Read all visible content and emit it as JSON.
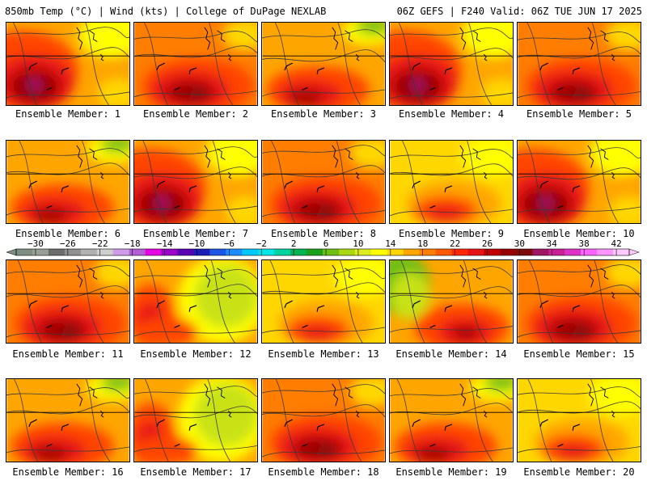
{
  "header": {
    "left": "850mb Temp (°C) | Wind (kts) | College of DuPage NEXLAB",
    "right": "06Z GEFS | F240 Valid: 06Z TUE JUN 17 2025"
  },
  "legend": {
    "tick_labels": [
      "-30",
      "-26",
      "-22",
      "-18",
      "-14",
      "-10",
      "-6",
      "-2",
      "2",
      "6",
      "10",
      "14",
      "18",
      "22",
      "26",
      "30",
      "34",
      "38",
      "42"
    ],
    "colors": [
      "#7e8e80",
      "#94a194",
      "#6c6c6c",
      "#909090",
      "#b0b0b0",
      "#cfcfcf",
      "#ce9ce8",
      "#b35fd6",
      "#e600e6",
      "#9b00c8",
      "#5a00b4",
      "#1c1cb8",
      "#1d55e6",
      "#1e8cff",
      "#00c8ff",
      "#00e6e6",
      "#00d2a0",
      "#00b450",
      "#1aa01a",
      "#6ebe14",
      "#a8d814",
      "#dcec1e",
      "#ffff00",
      "#ffd700",
      "#ffa500",
      "#ff7d00",
      "#ff5a00",
      "#ff2800",
      "#e61414",
      "#c00000",
      "#960000",
      "#7e0a0a",
      "#a01464",
      "#c81e96",
      "#dc32c8",
      "#ff64ff",
      "#ff96ff",
      "#ffc8ff"
    ],
    "temp_colors": {
      "green": "#6ebe14",
      "yellow_green": "#c8e214",
      "yellow": "#ffff00",
      "gold": "#ffd700",
      "orange": "#ffa500",
      "dark_orange": "#ff7d00",
      "red_orange": "#ff4500",
      "red": "#e61414",
      "dark_red": "#a00000",
      "maroon": "#7e0a0a",
      "magenta": "#c81e96"
    }
  },
  "members": [
    {
      "label": "Ensemble Member: 1",
      "style": "hot_west"
    },
    {
      "label": "Ensemble Member: 2",
      "style": "hot_south"
    },
    {
      "label": "Ensemble Member: 3",
      "style": "green_ne"
    },
    {
      "label": "Ensemble Member: 4",
      "style": "hot_west"
    },
    {
      "label": "Ensemble Member: 5",
      "style": "hot_south"
    },
    {
      "label": "Ensemble Member: 6",
      "style": "green_ne"
    },
    {
      "label": "Ensemble Member: 7",
      "style": "hot_west"
    },
    {
      "label": "Ensemble Member: 8",
      "style": "hot_south"
    },
    {
      "label": "Ensemble Member: 9",
      "style": "mild"
    },
    {
      "label": "Ensemble Member: 10",
      "style": "hot_west"
    },
    {
      "label": "Ensemble Member: 11",
      "style": "hot_south"
    },
    {
      "label": "Ensemble Member: 12",
      "style": "green_center"
    },
    {
      "label": "Ensemble Member: 13",
      "style": "mild"
    },
    {
      "label": "Ensemble Member: 14",
      "style": "green_west"
    },
    {
      "label": "Ensemble Member: 15",
      "style": "hot_south"
    },
    {
      "label": "Ensemble Member: 16",
      "style": "green_ne"
    },
    {
      "label": "Ensemble Member: 17",
      "style": "green_center"
    },
    {
      "label": "Ensemble Member: 18",
      "style": "hot_south"
    },
    {
      "label": "Ensemble Member: 19",
      "style": "green_ne"
    },
    {
      "label": "Ensemble Member: 20",
      "style": "mild"
    }
  ]
}
